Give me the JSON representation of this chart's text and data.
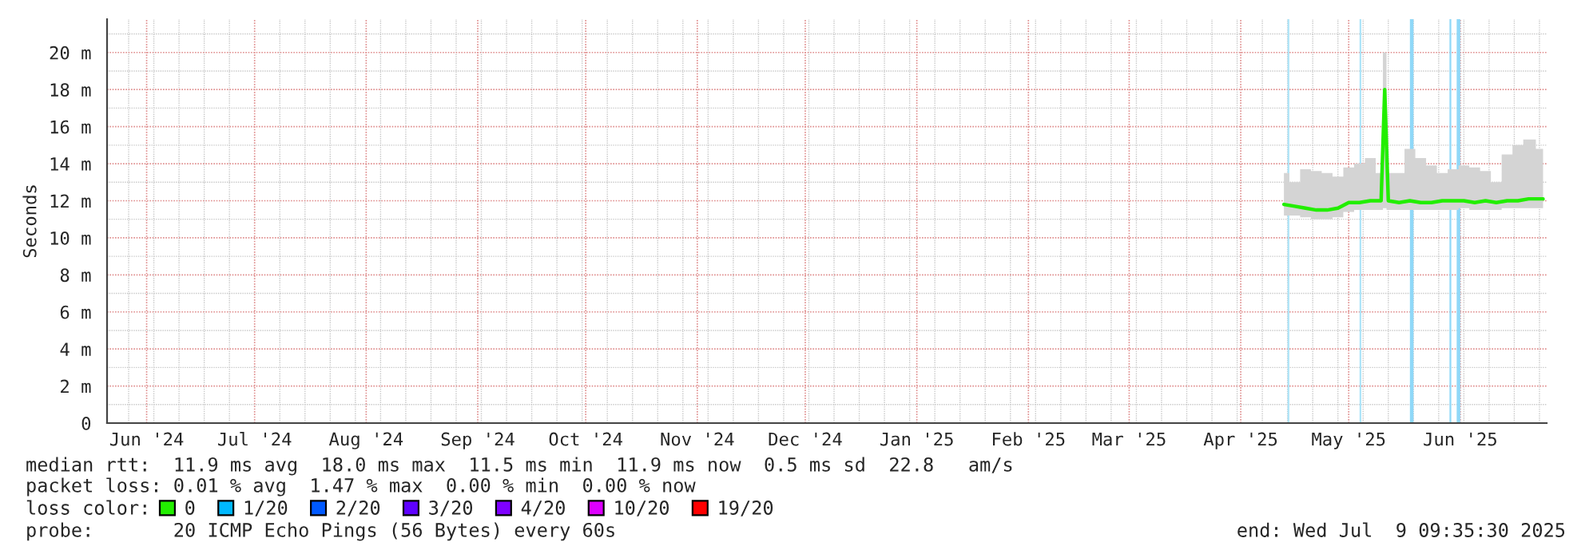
{
  "chart_data": {
    "type": "line",
    "ylabel": "Seconds",
    "xlim": [
      "2024-06-04",
      "2025-07-09"
    ],
    "xticks": [
      {
        "value": "2024-06-15",
        "label": "Jun '24"
      },
      {
        "value": "2024-07-15",
        "label": "Jul '24"
      },
      {
        "value": "2024-08-15",
        "label": "Aug '24"
      },
      {
        "value": "2024-09-15",
        "label": "Sep '24"
      },
      {
        "value": "2024-10-15",
        "label": "Oct '24"
      },
      {
        "value": "2024-11-15",
        "label": "Nov '24"
      },
      {
        "value": "2024-12-15",
        "label": "Dec '24"
      },
      {
        "value": "2025-01-15",
        "label": "Jan '25"
      },
      {
        "value": "2025-02-15",
        "label": "Feb '25"
      },
      {
        "value": "2025-03-15",
        "label": "Mar '25"
      },
      {
        "value": "2025-04-15",
        "label": "Apr '25"
      },
      {
        "value": "2025-05-15",
        "label": "May '25"
      },
      {
        "value": "2025-06-15",
        "label": "Jun '25"
      }
    ],
    "ylim": [
      0,
      21.8
    ],
    "yticks": [
      0,
      {
        "value": 2,
        "label": "2 m"
      },
      {
        "value": 4,
        "label": "4 m"
      },
      {
        "value": 6,
        "label": "6 m"
      },
      {
        "value": 8,
        "label": "8 m"
      },
      {
        "value": 10,
        "label": "10 m"
      },
      {
        "value": 12,
        "label": "12 m"
      },
      {
        "value": 14,
        "label": "14 m"
      },
      {
        "value": 16,
        "label": "16 m"
      },
      {
        "value": 18,
        "label": "18 m"
      },
      {
        "value": 20,
        "label": "20 m"
      }
    ],
    "grid": true,
    "legend": "bottom",
    "legend_title": "loss color:",
    "x": [
      "2025-04-27",
      "2025-04-30",
      "2025-05-03",
      "2025-05-06",
      "2025-05-09",
      "2025-05-12",
      "2025-05-15",
      "2025-05-18",
      "2025-05-21",
      "2025-05-24",
      "2025-05-25",
      "2025-05-26",
      "2025-05-29",
      "2025-06-01",
      "2025-06-04",
      "2025-06-07",
      "2025-06-10",
      "2025-06-13",
      "2025-06-16",
      "2025-06-19",
      "2025-06-22",
      "2025-06-25",
      "2025-06-28",
      "2025-07-01",
      "2025-07-04",
      "2025-07-08"
    ],
    "series": [
      {
        "name": "0",
        "color": "#22ee00",
        "values": [
          11.8,
          11.7,
          11.6,
          11.5,
          11.5,
          11.6,
          11.9,
          11.9,
          12.0,
          12.0,
          18.0,
          12.0,
          11.9,
          12.0,
          11.9,
          11.9,
          12.0,
          12.0,
          12.0,
          11.9,
          12.0,
          11.9,
          12.0,
          12.0,
          12.1,
          12.1
        ],
        "lower": [
          11.2,
          11.2,
          11.1,
          11.0,
          11.0,
          11.1,
          11.4,
          11.5,
          11.5,
          11.5,
          11.6,
          11.5,
          11.5,
          11.5,
          11.5,
          11.5,
          11.5,
          11.5,
          11.6,
          11.5,
          11.5,
          11.5,
          11.6,
          11.6,
          11.6,
          11.6
        ],
        "upper": [
          13.5,
          13.0,
          13.7,
          13.6,
          13.5,
          13.3,
          13.8,
          14.0,
          14.3,
          13.5,
          20.0,
          13.5,
          13.5,
          14.8,
          14.3,
          13.9,
          13.5,
          13.7,
          13.9,
          13.8,
          13.6,
          13.0,
          14.5,
          15.0,
          15.3,
          14.8
        ]
      },
      {
        "name": "1/20",
        "color": "#00b8ff",
        "values": [
          null,
          null,
          null,
          null,
          null,
          null,
          null,
          null,
          null,
          null,
          null,
          null,
          null,
          null,
          null,
          null,
          null,
          null,
          null,
          null,
          null,
          null,
          null,
          null,
          null,
          null
        ]
      },
      {
        "name": "2/20",
        "color": "#0059ff",
        "values": [
          null,
          null,
          null,
          null,
          null,
          null,
          null,
          null,
          null,
          null,
          null,
          null,
          null,
          null,
          null,
          null,
          null,
          null,
          null,
          null,
          null,
          null,
          null,
          null,
          null,
          null
        ]
      },
      {
        "name": "3/20",
        "color": "#5e00ff",
        "values": [
          null,
          null,
          null,
          null,
          null,
          null,
          null,
          null,
          null,
          null,
          null,
          null,
          null,
          null,
          null,
          null,
          null,
          null,
          null,
          null,
          null,
          null,
          null,
          null,
          null,
          null
        ]
      },
      {
        "name": "4/20",
        "color": "#7e00ff",
        "values": [
          null,
          null,
          null,
          null,
          null,
          null,
          null,
          null,
          null,
          null,
          null,
          null,
          null,
          null,
          null,
          null,
          null,
          null,
          null,
          null,
          null,
          null,
          null,
          null,
          null,
          null
        ]
      },
      {
        "name": "10/20",
        "color": "#dd00ff",
        "values": [
          null,
          null,
          null,
          null,
          null,
          null,
          null,
          null,
          null,
          null,
          null,
          null,
          null,
          null,
          null,
          null,
          null,
          null,
          null,
          null,
          null,
          null,
          null,
          null,
          null,
          null
        ]
      },
      {
        "name": "19/20",
        "color": "#ff0000",
        "values": [
          null,
          null,
          null,
          null,
          null,
          null,
          null,
          null,
          null,
          null,
          null,
          null,
          null,
          null,
          null,
          null,
          null,
          null,
          null,
          null,
          null,
          null,
          null,
          null,
          null,
          null
        ]
      }
    ],
    "bands": [
      {
        "axis": "x",
        "from": "2025-04-28",
        "to": "2025-04-28T12:00",
        "color": "#aee4f8"
      },
      {
        "axis": "x",
        "from": "2025-05-18",
        "to": "2025-05-18T12:00",
        "color": "#aee4f8"
      },
      {
        "axis": "x",
        "from": "2025-06-01",
        "to": "2025-06-02",
        "color": "#8fd8f8"
      },
      {
        "axis": "x",
        "from": "2025-06-12",
        "to": "2025-06-12T12:00",
        "color": "#8fd8f8"
      },
      {
        "axis": "x",
        "from": "2025-06-14",
        "to": "2025-06-15",
        "color": "#8fd8f8"
      }
    ],
    "annotations": [
      "median rtt:  11.9 ms avg  18.0 ms max  11.5 ms min  11.9 ms now  0.5 ms sd  22.8   am/s",
      "packet loss: 0.01 % avg  1.47 % max  0.00 % min  0.00 % now",
      "probe:       20 ICMP Echo Pings (56 Bytes) every 60s",
      "end: Wed Jul  9 09:35:30 2025"
    ]
  }
}
